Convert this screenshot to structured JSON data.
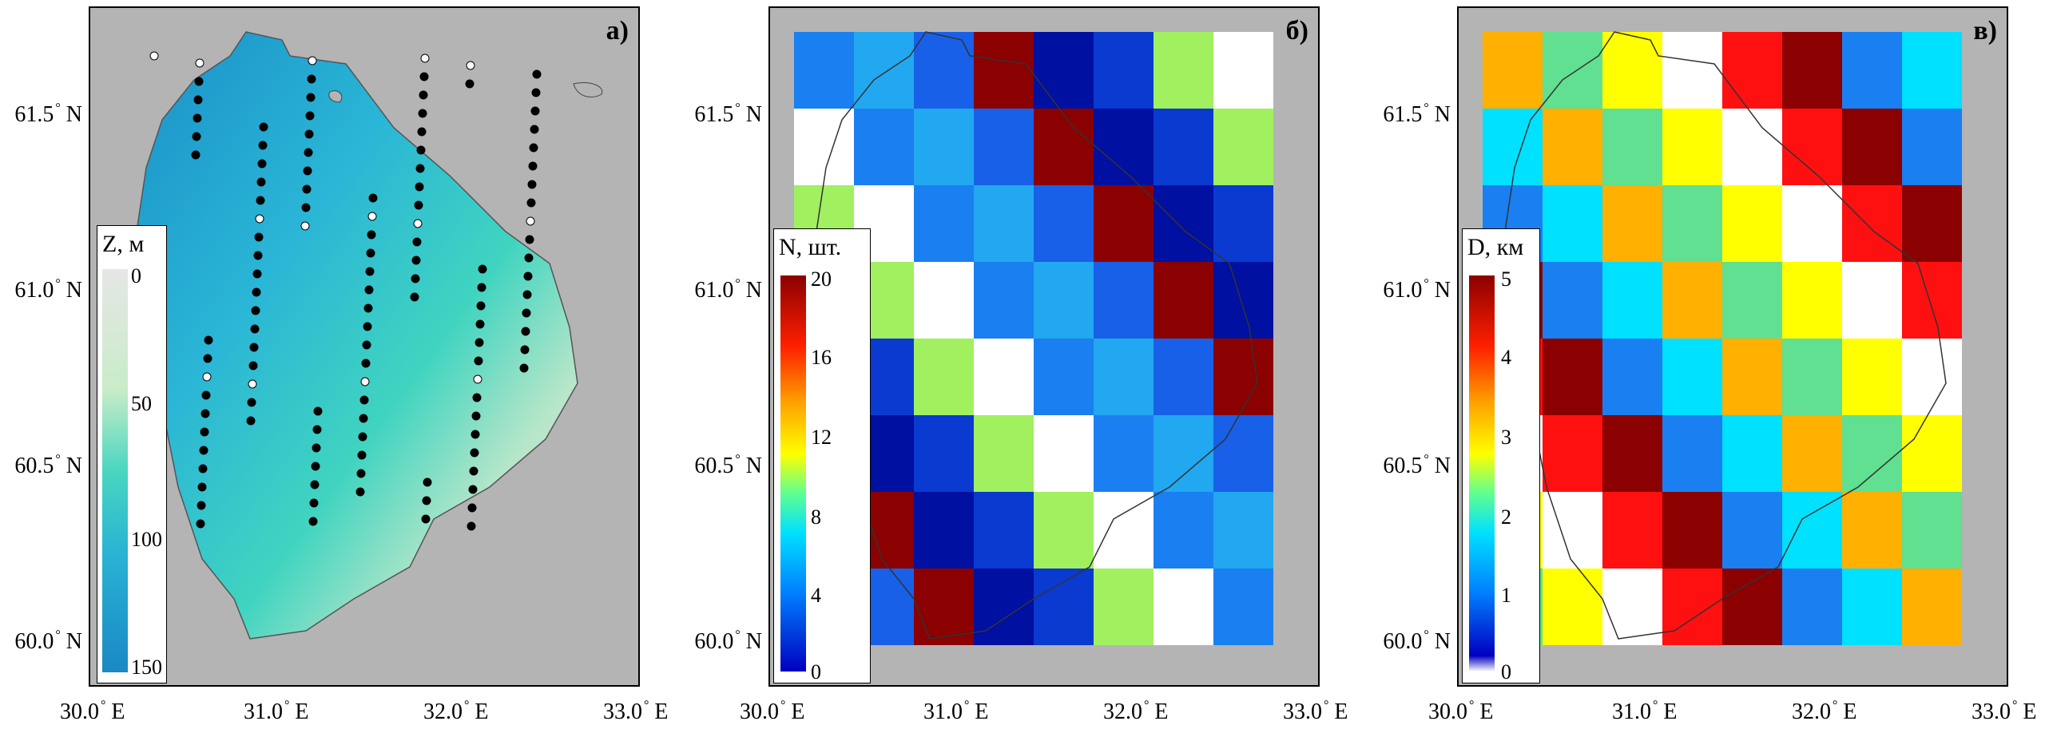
{
  "panels": [
    {
      "label": "а)",
      "colorbar_title": "Z, м",
      "colorbar_ticks": [
        "0",
        "50",
        "100",
        "150"
      ]
    },
    {
      "label": "б)",
      "colorbar_title": "N, шт.",
      "colorbar_ticks": [
        "20",
        "16",
        "12",
        "8",
        "4",
        "0"
      ]
    },
    {
      "label": "в)",
      "colorbar_title": "D, км",
      "colorbar_ticks": [
        "5",
        "4",
        "3",
        "2",
        "1",
        "0"
      ]
    }
  ],
  "lat_labels": [
    "61.5",
    "61.0",
    "60.5",
    "60.0"
  ],
  "lat_suffix": "N",
  "lon_labels": [
    "30.0",
    "31.0",
    "32.0",
    "33.0"
  ],
  "lon_suffix": "E",
  "deg": "°",
  "colors": {
    "land": "#b4b4b4",
    "water_min": "#ffffff"
  }
}
